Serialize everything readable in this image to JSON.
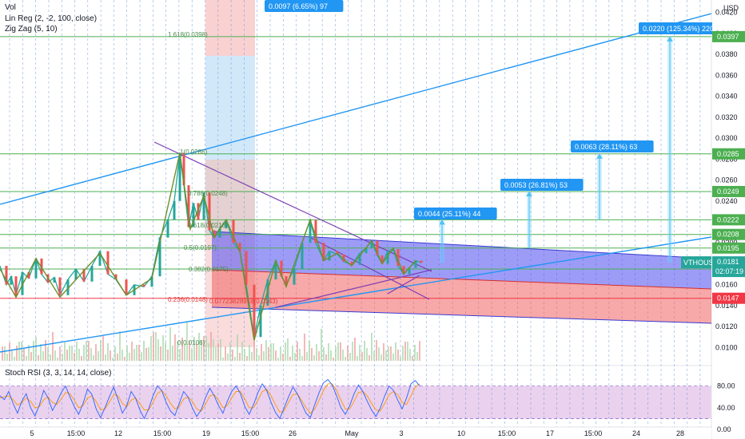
{
  "chart_data": {
    "type": "line",
    "symbol": "VTHOUSD",
    "last_price": "0.0181",
    "countdown": "02:07:19",
    "y_axis_unit": "USD",
    "ylim": [
      0.0085,
      0.0432
    ],
    "y_ticks": [
      "0.0420",
      "0.0400",
      "0.0380",
      "0.0360",
      "0.0340",
      "0.0320",
      "0.0300",
      "0.0280",
      "0.0260",
      "0.0240",
      "0.0220",
      "0.0200",
      "0.0180",
      "0.0160",
      "0.0140",
      "0.0120",
      "0.0100"
    ],
    "y_tick_values": [
      0.042,
      0.04,
      0.038,
      0.036,
      0.034,
      0.032,
      0.03,
      0.028,
      0.026,
      0.024,
      0.022,
      0.02,
      0.018,
      0.016,
      0.014,
      0.012,
      0.01
    ],
    "x_ticks": [
      "5",
      "15:00",
      "12",
      "15:00",
      "19",
      "15:00",
      "26",
      "May",
      "3",
      "10",
      "15:00",
      "17",
      "15:00",
      "24",
      "28"
    ],
    "price_levels": [
      {
        "value": 0.0397,
        "label": "0.0397",
        "color": "#4caf50"
      },
      {
        "value": 0.0285,
        "label": "0.0285",
        "color": "#4caf50"
      },
      {
        "value": 0.0249,
        "label": "0.0249",
        "color": "#4caf50"
      },
      {
        "value": 0.0222,
        "label": "0.0222",
        "color": "#4caf50"
      },
      {
        "value": 0.0208,
        "label": "0.0208",
        "color": "#4caf50"
      },
      {
        "value": 0.0195,
        "label": "0.0195",
        "color": "#4caf50"
      },
      {
        "value": 0.0175,
        "label": "0.0175",
        "color": "#4caf50"
      },
      {
        "value": 0.0147,
        "label": "0.0147",
        "color": "#f23645"
      }
    ],
    "fib_labels": [
      "1.618(0.0398)",
      "1(0.0286)",
      "0.786(0.0248)",
      "0.618(0.0218)",
      "0.5(0.0197)",
      "0.382(0.0175)",
      "0.236(0.0148)",
      "0(0.0106)",
      "0.07723828918(0.0143)"
    ],
    "projections": [
      {
        "label": "0.0097 (6.65%) 97",
        "target": 0.0432
      },
      {
        "label": "0.0044 (25.11%) 44",
        "target": 0.0222
      },
      {
        "label": "0.0053 (26.81%) 53",
        "target": 0.0249
      },
      {
        "label": "0.0063 (28.11%) 63",
        "target": 0.0285
      },
      {
        "label": "0.0220 (125.34%) 220",
        "target": 0.0397
      }
    ],
    "zigzag": [
      [
        0,
        0.0175
      ],
      [
        20,
        0.0148
      ],
      [
        45,
        0.0185
      ],
      [
        75,
        0.0148
      ],
      [
        125,
        0.019
      ],
      [
        158,
        0.015
      ],
      [
        190,
        0.0166
      ],
      [
        225,
        0.0286
      ],
      [
        238,
        0.0213
      ],
      [
        255,
        0.0245
      ],
      [
        268,
        0.0205
      ],
      [
        283,
        0.0222
      ],
      [
        300,
        0.0192
      ],
      [
        318,
        0.0107
      ],
      [
        345,
        0.0183
      ],
      [
        358,
        0.0158
      ],
      [
        388,
        0.0222
      ],
      [
        405,
        0.0183
      ],
      [
        422,
        0.019
      ],
      [
        440,
        0.0178
      ],
      [
        465,
        0.0202
      ],
      [
        478,
        0.018
      ],
      [
        492,
        0.0195
      ],
      [
        505,
        0.017
      ],
      [
        520,
        0.0183
      ]
    ],
    "price": [
      [
        0,
        0.0178
      ],
      [
        8,
        0.016
      ],
      [
        14,
        0.0168
      ],
      [
        20,
        0.015
      ],
      [
        28,
        0.0172
      ],
      [
        36,
        0.0166
      ],
      [
        45,
        0.0185
      ],
      [
        52,
        0.017
      ],
      [
        60,
        0.0162
      ],
      [
        68,
        0.0167
      ],
      [
        75,
        0.015
      ],
      [
        85,
        0.0165
      ],
      [
        95,
        0.0175
      ],
      [
        105,
        0.0163
      ],
      [
        115,
        0.0178
      ],
      [
        125,
        0.0192
      ],
      [
        135,
        0.017
      ],
      [
        145,
        0.0165
      ],
      [
        158,
        0.015
      ],
      [
        168,
        0.016
      ],
      [
        180,
        0.0158
      ],
      [
        190,
        0.0168
      ],
      [
        200,
        0.0205
      ],
      [
        210,
        0.0222
      ],
      [
        218,
        0.024
      ],
      [
        225,
        0.0286
      ],
      [
        230,
        0.0255
      ],
      [
        236,
        0.0215
      ],
      [
        242,
        0.0238
      ],
      [
        248,
        0.0222
      ],
      [
        255,
        0.0248
      ],
      [
        262,
        0.0212
      ],
      [
        268,
        0.0205
      ],
      [
        275,
        0.0214
      ],
      [
        283,
        0.0222
      ],
      [
        292,
        0.02
      ],
      [
        300,
        0.0192
      ],
      [
        308,
        0.016
      ],
      [
        318,
        0.011
      ],
      [
        326,
        0.014
      ],
      [
        335,
        0.0165
      ],
      [
        345,
        0.0183
      ],
      [
        352,
        0.0168
      ],
      [
        358,
        0.016
      ],
      [
        368,
        0.0175
      ],
      [
        378,
        0.02
      ],
      [
        388,
        0.0222
      ],
      [
        395,
        0.02
      ],
      [
        405,
        0.0183
      ],
      [
        412,
        0.0192
      ],
      [
        422,
        0.0189
      ],
      [
        430,
        0.0182
      ],
      [
        440,
        0.0179
      ],
      [
        450,
        0.019
      ],
      [
        458,
        0.0195
      ],
      [
        465,
        0.0202
      ],
      [
        472,
        0.0188
      ],
      [
        478,
        0.018
      ],
      [
        485,
        0.0192
      ],
      [
        492,
        0.0194
      ],
      [
        498,
        0.0178
      ],
      [
        505,
        0.017
      ],
      [
        512,
        0.0176
      ],
      [
        520,
        0.0183
      ],
      [
        527,
        0.0181
      ]
    ],
    "indicators": [
      "Vol",
      "Lin Reg (2, -2, 100, close)",
      "Zig Zag (5, 10)"
    ],
    "oscillator": {
      "name": "Stoch RSI (3, 3, 14, 14, close)",
      "ylim": [
        -10,
        100
      ],
      "ticks": [
        "80.00",
        "40.00",
        "0.00"
      ],
      "tick_values": [
        80,
        40,
        0
      ],
      "bands": [
        20,
        80
      ],
      "k": [
        62,
        55,
        70,
        48,
        30,
        52,
        66,
        40,
        25,
        45,
        72,
        58,
        35,
        50,
        68,
        80,
        60,
        42,
        28,
        48,
        74,
        65,
        38,
        22,
        40,
        60,
        78,
        55,
        30,
        44,
        70,
        58,
        36,
        20,
        38,
        62,
        80,
        72,
        50,
        34,
        26,
        48,
        70,
        60,
        40,
        24,
        36,
        58,
        76,
        62,
        44,
        30,
        52,
        70,
        80,
        66,
        42,
        28,
        46,
        68,
        84,
        72,
        50,
        32,
        20,
        40,
        60,
        78,
        66,
        48,
        30,
        22,
        46,
        68,
        86,
        92,
        82,
        62,
        40,
        28,
        44,
        66,
        82,
        70,
        52,
        36,
        24,
        40,
        62,
        80,
        72,
        54,
        38,
        58,
        84,
        90,
        80
      ],
      "d": [
        58,
        60,
        62,
        55,
        45,
        50,
        58,
        52,
        40,
        42,
        55,
        60,
        50,
        46,
        56,
        68,
        66,
        54,
        40,
        44,
        58,
        62,
        52,
        36,
        38,
        50,
        64,
        62,
        48,
        42,
        54,
        58,
        48,
        36,
        36,
        50,
        66,
        72,
        62,
        48,
        38,
        42,
        56,
        60,
        52,
        38,
        34,
        46,
        62,
        64,
        54,
        40,
        44,
        58,
        70,
        70,
        56,
        40,
        40,
        54,
        70,
        74,
        62,
        46,
        32,
        34,
        50,
        64,
        66,
        54,
        40,
        30,
        38,
        54,
        72,
        84,
        84,
        72,
        54,
        38,
        38,
        52,
        68,
        70,
        62,
        48,
        36,
        34,
        48,
        64,
        70,
        64,
        50,
        46,
        62,
        78,
        84
      ]
    }
  }
}
